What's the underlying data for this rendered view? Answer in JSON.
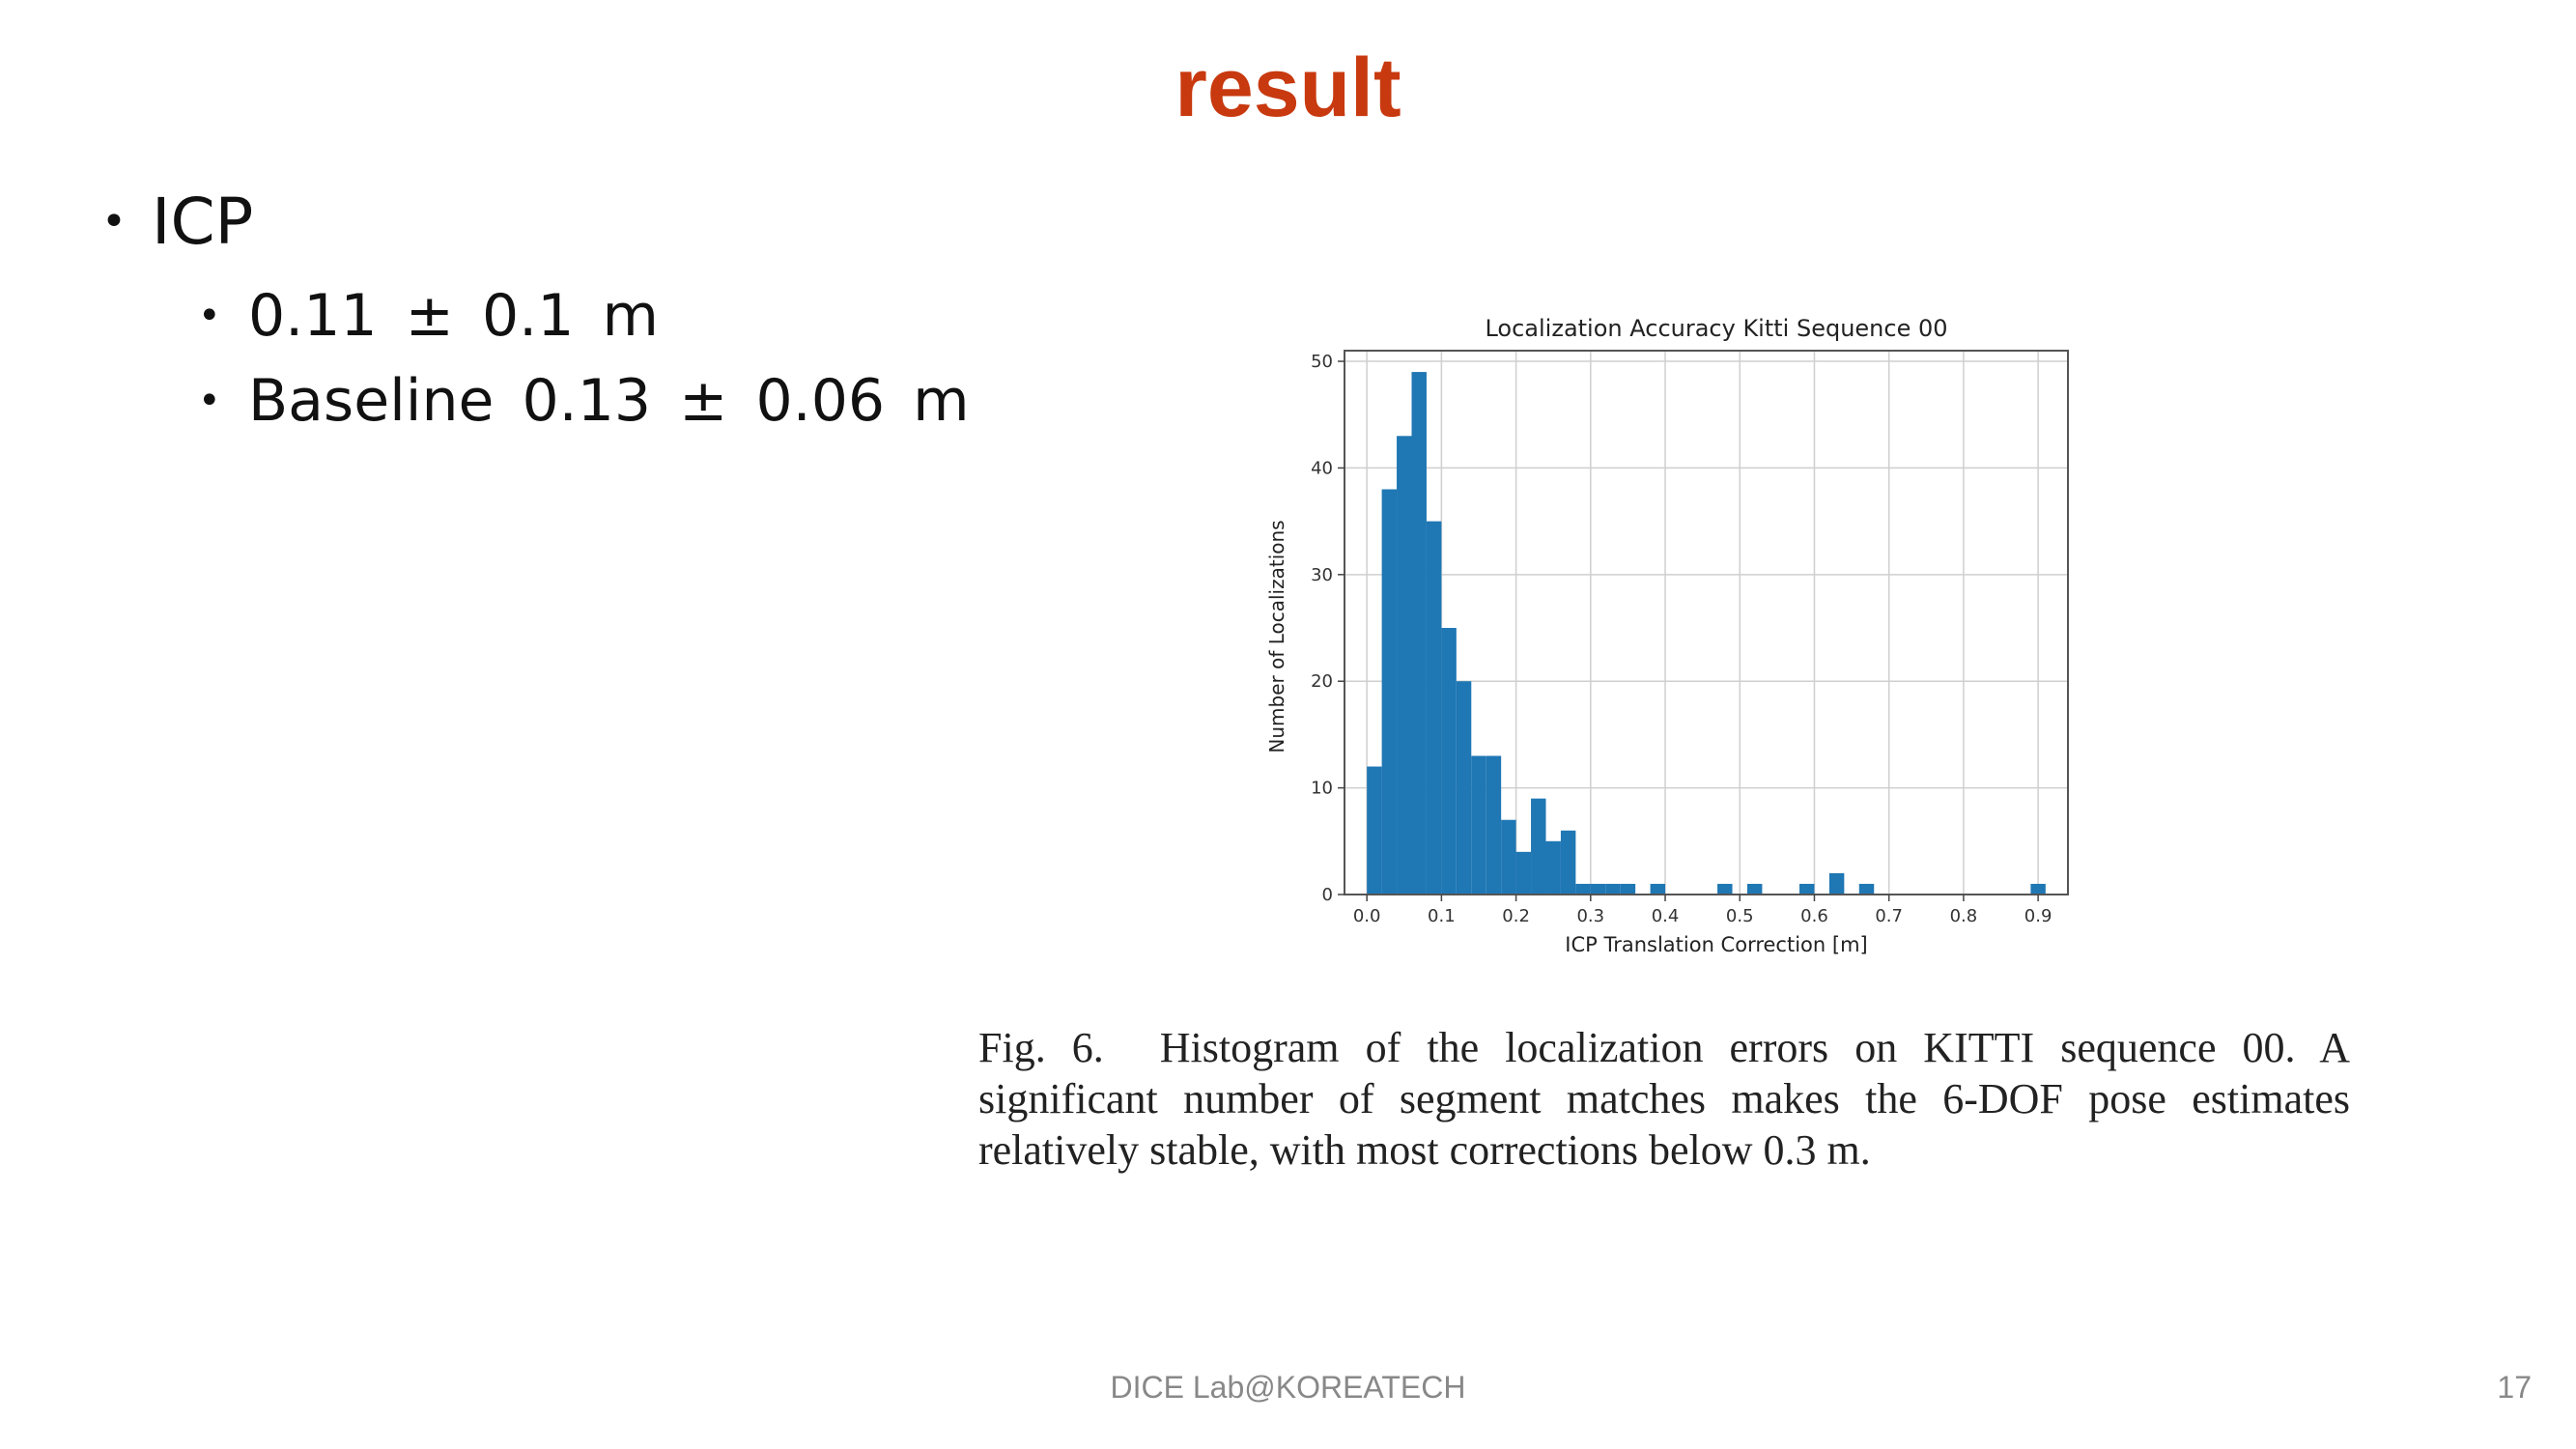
{
  "slide": {
    "title": "result",
    "bullet_main": "ICP",
    "sub_bullets": [
      "0.11 ± 0.1 m",
      "Baseline 0.13 ± 0.06 m"
    ]
  },
  "chart_data": {
    "type": "bar",
    "title": "Localization Accuracy Kitti Sequence 00",
    "xlabel": "ICP Translation Correction [m]",
    "ylabel": "Number of Localizations",
    "xlim": [
      -0.03,
      0.94
    ],
    "ylim": [
      0,
      51
    ],
    "xticks": [
      "0.0",
      "0.1",
      "0.2",
      "0.3",
      "0.4",
      "0.5",
      "0.6",
      "0.7",
      "0.8",
      "0.9"
    ],
    "yticks": [
      "0",
      "10",
      "20",
      "30",
      "40",
      "50"
    ],
    "grid": true,
    "bar_color": "#1f77b4",
    "bins": [
      {
        "x": 0.01,
        "count": 12
      },
      {
        "x": 0.03,
        "count": 38
      },
      {
        "x": 0.05,
        "count": 43
      },
      {
        "x": 0.07,
        "count": 49
      },
      {
        "x": 0.09,
        "count": 35
      },
      {
        "x": 0.11,
        "count": 25
      },
      {
        "x": 0.13,
        "count": 20
      },
      {
        "x": 0.15,
        "count": 13
      },
      {
        "x": 0.17,
        "count": 13
      },
      {
        "x": 0.19,
        "count": 7
      },
      {
        "x": 0.21,
        "count": 4
      },
      {
        "x": 0.23,
        "count": 9
      },
      {
        "x": 0.25,
        "count": 5
      },
      {
        "x": 0.27,
        "count": 6
      },
      {
        "x": 0.29,
        "count": 1
      },
      {
        "x": 0.31,
        "count": 1
      },
      {
        "x": 0.33,
        "count": 1
      },
      {
        "x": 0.35,
        "count": 1
      },
      {
        "x": 0.39,
        "count": 1
      },
      {
        "x": 0.48,
        "count": 1
      },
      {
        "x": 0.52,
        "count": 1
      },
      {
        "x": 0.59,
        "count": 1
      },
      {
        "x": 0.63,
        "count": 2
      },
      {
        "x": 0.67,
        "count": 1
      },
      {
        "x": 0.9,
        "count": 1
      }
    ],
    "bin_width": 0.02
  },
  "caption": {
    "label": "Fig. 6.",
    "text": "Histogram of the localization errors on KITTI sequence 00. A significant number of segment matches makes the 6-DOF pose estimates relatively stable, with most corrections below 0.3 m."
  },
  "footer": {
    "center": "DICE Lab@KOREATECH",
    "page_number": "17"
  }
}
